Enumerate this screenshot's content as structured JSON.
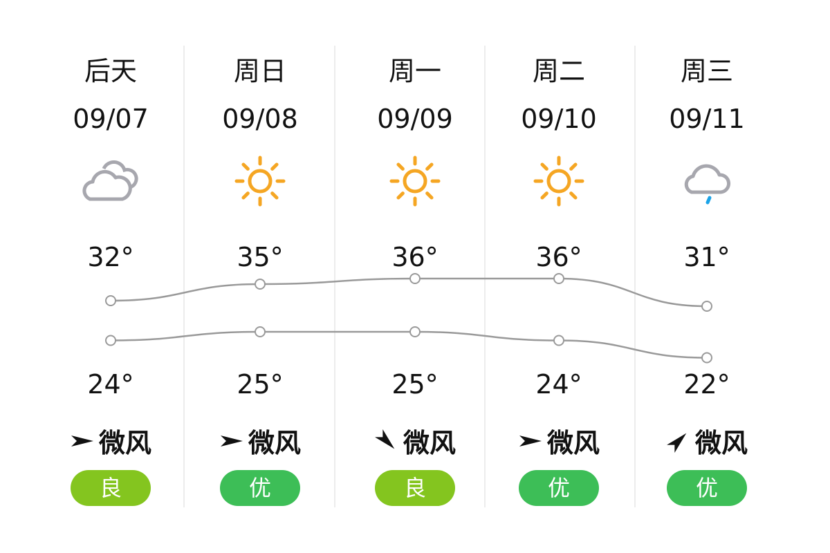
{
  "days": [
    {
      "day": "后天",
      "date": "09/07",
      "weather_icon": "cloudy-icon",
      "high": "32°",
      "low": "24°",
      "high_value": 32,
      "low_value": 24,
      "wind": "微风",
      "wind_direction_deg": 0,
      "aqi": "良",
      "aqi_color": "#84c51f"
    },
    {
      "day": "周日",
      "date": "09/08",
      "weather_icon": "sunny-icon",
      "high": "35°",
      "low": "25°",
      "high_value": 35,
      "low_value": 25,
      "wind": "微风",
      "wind_direction_deg": 0,
      "aqi": "优",
      "aqi_color": "#3dbe57"
    },
    {
      "day": "周一",
      "date": "09/09",
      "weather_icon": "sunny-icon",
      "high": "36°",
      "low": "25°",
      "high_value": 36,
      "low_value": 25,
      "wind": "微风",
      "wind_direction_deg": 45,
      "aqi": "良",
      "aqi_color": "#84c51f"
    },
    {
      "day": "周二",
      "date": "09/10",
      "weather_icon": "sunny-icon",
      "high": "36°",
      "low": "24°",
      "high_value": 36,
      "low_value": 24,
      "wind": "微风",
      "wind_direction_deg": 0,
      "aqi": "优",
      "aqi_color": "#3dbe57"
    },
    {
      "day": "周三",
      "date": "09/11",
      "weather_icon": "light-rain-icon",
      "high": "31°",
      "low": "22°",
      "high_value": 31,
      "low_value": 22,
      "wind": "微风",
      "wind_direction_deg": -45,
      "aqi": "优",
      "aqi_color": "#3dbe57"
    }
  ],
  "colors": {
    "sun": "#f5a623",
    "cloud": "#a7a7ae",
    "rain": "#1aa3e8",
    "line": "#999999"
  }
}
